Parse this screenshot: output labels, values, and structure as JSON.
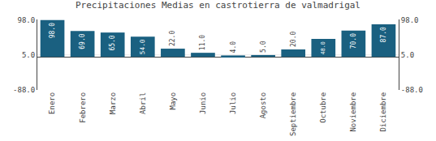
{
  "chart_data": {
    "type": "bar",
    "title": "Precipitaciones Medias en castrotierra de valmadrigal",
    "categories": [
      "Enero",
      "Febrero",
      "Marzo",
      "Abril",
      "Mayo",
      "Junio",
      "Julio",
      "Agosto",
      "Septiembre",
      "Octubre",
      "Noviembre",
      "Diciembre"
    ],
    "values": [
      98.0,
      69.0,
      65.0,
      54.0,
      22.0,
      11.0,
      4.0,
      5.0,
      20.0,
      48.0,
      70.0,
      87.0
    ],
    "value_labels": [
      "98.0",
      "69.0",
      "65.0",
      "54.0",
      "22.0",
      "11.0",
      "4.0",
      "5.0",
      "20.0",
      "48.0",
      "70.0",
      "87.0"
    ],
    "data_labels": true,
    "color": "#1a6080",
    "ylim": [
      -88,
      99.86
    ],
    "yticks": [
      {
        "value": -88,
        "label": "-88.0"
      },
      {
        "value": 5,
        "label": "5.0"
      },
      {
        "value": 98,
        "label": "98.0"
      }
    ],
    "y2lim": [
      -88,
      99.86
    ],
    "y2ticks": [
      {
        "value": -88,
        "label": "-88.0"
      },
      {
        "value": 5,
        "label": "5.0"
      },
      {
        "value": 98,
        "label": "98.0"
      }
    ],
    "grid": true
  }
}
